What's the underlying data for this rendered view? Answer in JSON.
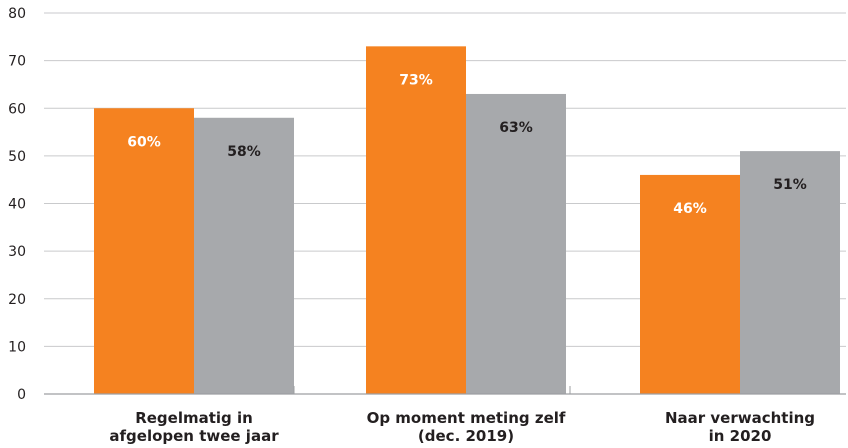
{
  "chart_data": {
    "type": "bar",
    "categories": [
      [
        "Regelmatig in",
        "afgelopen twee jaar"
      ],
      [
        "Op moment meting zelf",
        "(dec. 2019)"
      ],
      [
        "Naar verwachting",
        "in 2020"
      ]
    ],
    "series": [
      {
        "color": "#f58220",
        "values": [
          60,
          73,
          46
        ],
        "labels": [
          "60%",
          "73%",
          "46%"
        ],
        "label_color": "#ffffff"
      },
      {
        "color": "#a7a9ac",
        "values": [
          58,
          63,
          51
        ],
        "labels": [
          "58%",
          "63%",
          "51%"
        ],
        "label_color": "#231f20"
      }
    ],
    "ylim": [
      0,
      80
    ],
    "yticks": [
      "0",
      "10",
      "20",
      "30",
      "40",
      "50",
      "60",
      "70",
      "80"
    ],
    "grid": true,
    "legend": "none",
    "title": "",
    "xlabel": "",
    "ylabel": ""
  }
}
